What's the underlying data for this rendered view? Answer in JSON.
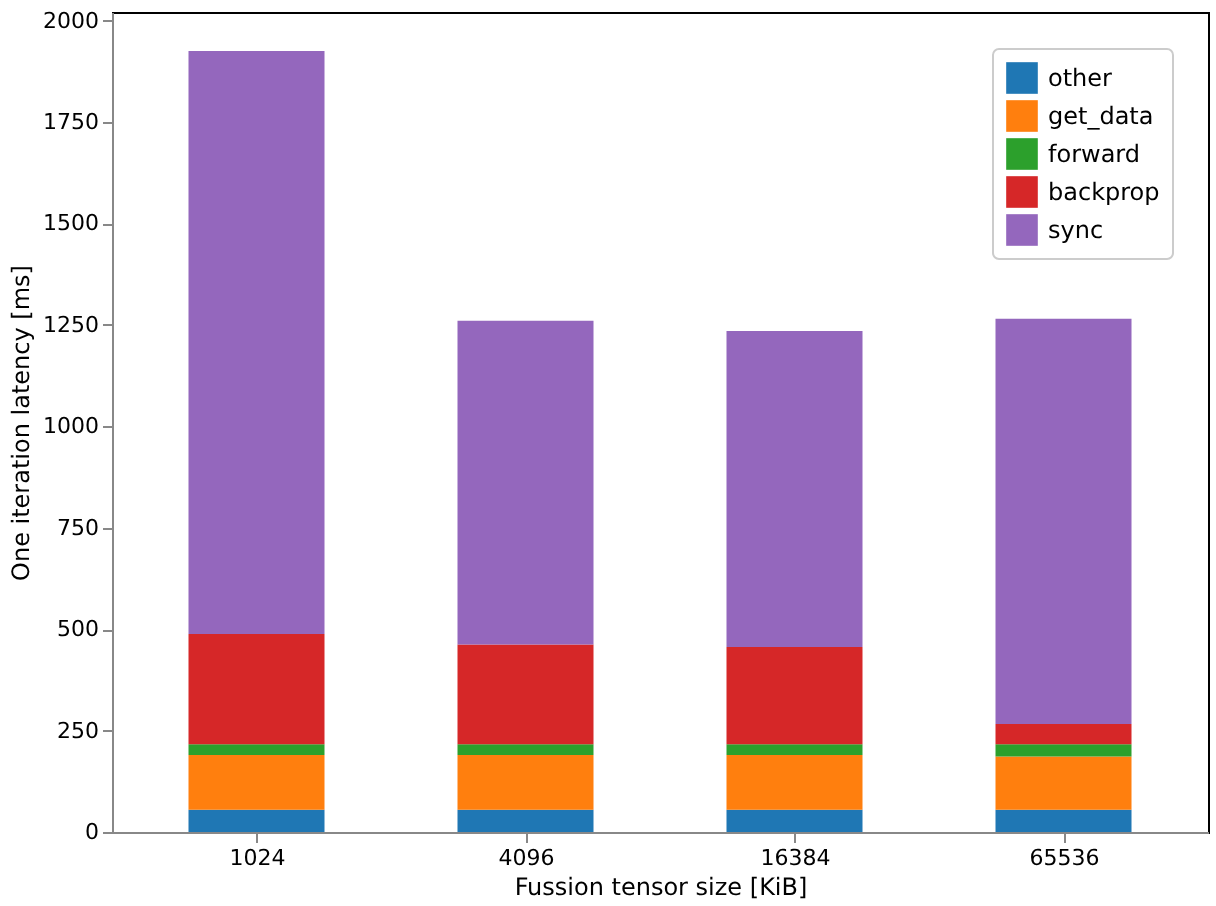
{
  "chart_data": {
    "type": "bar",
    "stacked": true,
    "xlabel": "Fussion tensor size [KiB]",
    "ylabel": "One iteration latency [ms]",
    "categories": [
      "1024",
      "4096",
      "16384",
      "65536"
    ],
    "series": [
      {
        "name": "other",
        "color": "#1f77b4",
        "values": [
          55,
          55,
          55,
          55
        ]
      },
      {
        "name": "get_data",
        "color": "#ff7f0e",
        "values": [
          135,
          135,
          135,
          131
        ]
      },
      {
        "name": "forward",
        "color": "#2ca02c",
        "values": [
          26,
          26,
          26,
          30
        ]
      },
      {
        "name": "backprop",
        "color": "#d62728",
        "values": [
          272,
          246,
          240,
          50
        ]
      },
      {
        "name": "sync",
        "color": "#9467bd",
        "values": [
          1437,
          798,
          779,
          999
        ]
      }
    ],
    "ylim": [
      0,
      2021
    ],
    "yticks": [
      0,
      250,
      500,
      750,
      1000,
      1250,
      1500,
      1750,
      2000
    ],
    "grid": false,
    "legend": "top right"
  }
}
